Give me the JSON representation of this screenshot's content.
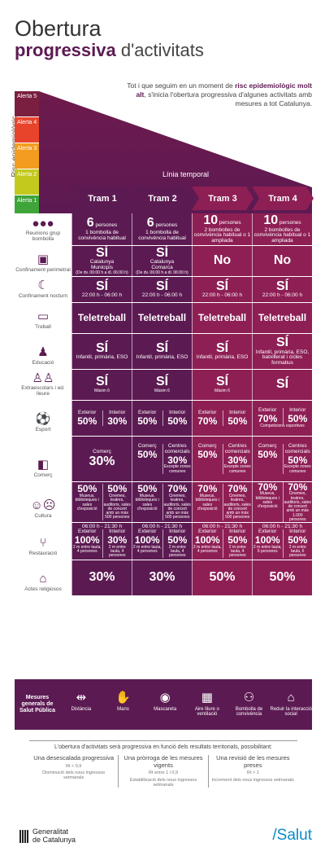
{
  "header": {
    "title_line1": "Obertura",
    "title_bold": "progressiva",
    "title_rest": " d'activitats",
    "intro_a": "Tot i que seguim en un moment de ",
    "intro_b": "risc epidemiològic molt alt",
    "intro_c": ", s'inicia l'obertura progressiva d'algunes activitats amb mesures a tot Catalunya."
  },
  "risk": {
    "label": "Risc epidemiològic",
    "alerts": [
      "Alerta 5",
      "Alerta 4",
      "Alerta 3",
      "Alerta 2",
      "Alerta 1"
    ],
    "colors": [
      "#7a1f3f",
      "#e8442c",
      "#f39c1f",
      "#c4c91e",
      "#3fa53a"
    ]
  },
  "timeline": "Línia temporal",
  "trams": [
    "Tram 1",
    "Tram 2",
    "Tram 3",
    "Tram 4"
  ],
  "rows": [
    {
      "label": "Reunions grup bombolla",
      "icon": "people-icon",
      "cells": [
        {
          "b": "6",
          "s": "persones",
          "t": "1 bombolla de convivència habitual"
        },
        {
          "b": "6",
          "s": "persones",
          "t": "1 bombolla de convivència habitual"
        },
        {
          "b": "10",
          "s": "persones",
          "t": "2 bombolles de convivència habitual o 1 ampliada"
        },
        {
          "b": "10",
          "s": "persones",
          "t": "2 bombolles de convivència habitual o 1 ampliada"
        }
      ]
    },
    {
      "label": "Confinament perimetral",
      "icon": "lock-icon",
      "cells": [
        {
          "b": "SÍ",
          "t": "Catalunya",
          "u": "Municipis",
          "x": "(De dv. 06:00 h a dl. 06:00 h)"
        },
        {
          "b": "SÍ",
          "t": "Catalunya",
          "u": "Comarca",
          "x": "(De dv. 06:00 h a dl. 06:00 h)"
        },
        {
          "b": "No"
        },
        {
          "b": "No"
        }
      ]
    },
    {
      "label": "Confinament nocturn",
      "icon": "moon-icon",
      "cells": [
        {
          "b": "SÍ",
          "t": "22:00 h - 06:00 h"
        },
        {
          "b": "SÍ",
          "t": "22:00 h - 06:00 h"
        },
        {
          "b": "SÍ",
          "t": "22:00 h - 06:00 h"
        },
        {
          "b": "SÍ",
          "t": "22:00 h - 06:00 h"
        }
      ]
    },
    {
      "label": "Treball",
      "icon": "briefcase-icon",
      "cells": [
        {
          "m": "Teletreball"
        },
        {
          "m": "Teletreball"
        },
        {
          "m": "Teletreball"
        },
        {
          "m": "Teletreball"
        }
      ]
    },
    {
      "label": "Educació",
      "icon": "teacher-icon",
      "cells": [
        {
          "b": "SÍ",
          "t": "Infantil, primària, ESO"
        },
        {
          "b": "SÍ",
          "t": "Infantil, primària, ESO"
        },
        {
          "b": "SÍ",
          "t": "Infantil, primària, ESO"
        },
        {
          "b": "SÍ",
          "t": "Infantil, primària, ESO, batxillerat i cicles formatius"
        }
      ]
    },
    {
      "label": "Extraescolars i ed. lleure",
      "icon": "children-icon",
      "cells": [
        {
          "b": "SÍ",
          "x": "Màxim 6"
        },
        {
          "b": "SÍ",
          "x": "Màxim 6"
        },
        {
          "b": "SÍ",
          "x": "Màxim 6"
        },
        {
          "b": "SÍ"
        }
      ]
    },
    {
      "label": "Esport",
      "icon": "football-icon",
      "cells": [
        {
          "l": "Exterior",
          "lv": "50%",
          "r": "Interior",
          "rv": "30%"
        },
        {
          "l": "Exterior",
          "lv": "50%",
          "r": "Interior",
          "rv": "50%"
        },
        {
          "l": "Exterior",
          "lv": "70%",
          "r": "Interior",
          "rv": "50%"
        },
        {
          "l": "Exterior",
          "lv": "70%",
          "r": "Interior",
          "rv": "50%",
          "x": "Competicions esportives"
        }
      ]
    },
    {
      "label": "Comerç",
      "icon": "bag-icon",
      "cells": [
        {
          "h": "Comerç",
          "bv": "30%"
        },
        {
          "l": "Comerç",
          "lv": "50%",
          "r": "Centres comercials",
          "rv": "30%",
          "rx": "Excepte zones comunes"
        },
        {
          "l": "Comerç",
          "lv": "50%",
          "r": "Centres comercials",
          "rv": "30%",
          "rx": "Excepte zones comunes"
        },
        {
          "l": "Comerç",
          "lv": "50%",
          "r": "Centres comercials",
          "rv": "50%",
          "rx": "Excepte zones comunes"
        }
      ]
    },
    {
      "label": "Cultura",
      "icon": "masks-icon",
      "cells": [
        {
          "lv": "50%",
          "lx": "Museus, biblioteques i sales d'exposició",
          "rv": "50%",
          "rx": "Cinemes, teatres, auditoris, sales de concert amb un màx 500 persones"
        },
        {
          "lv": "50%",
          "lx": "Museus, biblioteques i sales d'exposició",
          "rv": "70%",
          "rx": "Cinemes, teatres, auditoris, sales de concert amb un màx 500 persones"
        },
        {
          "lv": "70%",
          "lx": "Museus, biblioteques i sales d'exposició",
          "rv": "70%",
          "rx": "Cinemes, teatres, auditoris, sales de concert amb un màx 500 persones"
        },
        {
          "lv": "70%",
          "lx": "Museus, biblioteques i sales d'exposició",
          "rv": "70%",
          "rx": "Cinemes, teatres, auditoris, sales de concert amb un màx 1.000 persones"
        }
      ]
    },
    {
      "label": "Restauració",
      "icon": "cutlery-icon",
      "cells": [
        {
          "top": "06:00 h - 21:30 h",
          "l": "Exterior",
          "lv": "100%",
          "lx": "2 m entre taula, 4 persones",
          "r": "Interior",
          "rv": "30%",
          "rx": "2 m entre taula, 4 persones"
        },
        {
          "top": "06:00 h - 21:30 h",
          "l": "Exterior",
          "lv": "100%",
          "lx": "2 m entre taula, 4 persones",
          "r": "Interior",
          "rv": "50%",
          "rx": "2 m entre taula, 4 persones"
        },
        {
          "top": "06:00 h - 21:30 h",
          "l": "Exterior",
          "lv": "100%",
          "lx": "2 m entre taula, 4 persones",
          "r": "Interior",
          "rv": "50%",
          "rx": "2 m entre taula, 4 persones"
        },
        {
          "top": "06:00 h - 21:30 h",
          "l": "Exterior",
          "lv": "100%",
          "lx": "2 m entre taula, 6 persones",
          "r": "Interior",
          "rv": "50%",
          "rx": "2 m entre taula, 6 persones"
        }
      ]
    },
    {
      "label": "Actes religiosos",
      "icon": "church-icon",
      "cells": [
        {
          "bv": "30%"
        },
        {
          "bv": "30%"
        },
        {
          "bv": "50%"
        },
        {
          "bv": "50%"
        }
      ]
    }
  ],
  "mesures": {
    "title": "Mesures generals de Salut Pública",
    "items": [
      {
        "label": "Distància",
        "glyph": "⇹",
        "icon": "distance-icon"
      },
      {
        "label": "Mans",
        "glyph": "✋",
        "icon": "hands-icon"
      },
      {
        "label": "Mascareta",
        "glyph": "◉",
        "icon": "mask-icon"
      },
      {
        "label": "Aire lliure o ventilació",
        "glyph": "▦",
        "icon": "ventilation-icon"
      },
      {
        "label": "Bombolla de convivència",
        "glyph": "⚇",
        "icon": "bubble-icon"
      },
      {
        "label": "Reduir la interacció social",
        "glyph": "⌂",
        "icon": "home-icon"
      }
    ]
  },
  "footer": {
    "intro": "L'obertura d'activitats serà progressiva en funció dels resultats territorials, possibilitant:",
    "cols": [
      {
        "title": "Una desescalada progressiva",
        "rt": "Rt < 0,9",
        "sub": "Disminució dels nous ingressos setmanals"
      },
      {
        "title": "Una pròrroga de les mesures vigents",
        "rt": "Rt entre 1 i 0,9",
        "sub": "Estabilització dels nous ingressos setmanals"
      },
      {
        "title": "Una revisió de les mesures preses",
        "rt": "Rt > 1",
        "sub": "Increment dels nous ingressos setmanals"
      }
    ]
  },
  "brand": {
    "gen1": "Generalitat",
    "gen2": "de Catalunya",
    "salut": "/Salut"
  }
}
